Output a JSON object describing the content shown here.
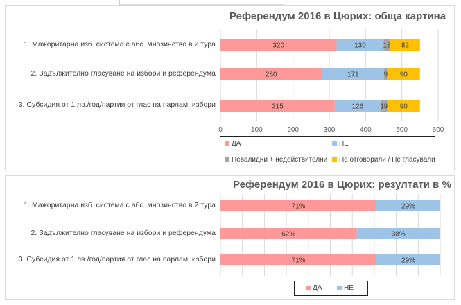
{
  "colors": {
    "yes": "#ff9999",
    "no": "#9dc3e6",
    "invalid": "#a5a5a5",
    "noanswer": "#ffc000"
  },
  "chart_data": [
    {
      "type": "bar",
      "orientation": "horizontal",
      "stacked": true,
      "title": "Референдум 2016 в Цюрих: обща картина",
      "categories": [
        "1. Мажоритарна изб. система с абс. мнозинство в 2 тура",
        "2. Задължително гласуване на избори и референдума",
        "3. Субсидия от 1 лв./год/партия от глас на парлам. избори"
      ],
      "series": [
        {
          "name": "ДА",
          "values": [
            320,
            280,
            315
          ]
        },
        {
          "name": "НЕ",
          "values": [
            130,
            171,
            126
          ]
        },
        {
          "name": "Невалидни + недействителни",
          "values": [
            18,
            9,
            19
          ]
        },
        {
          "name": "Не отговорили / Не гласували",
          "values": [
            82,
            90,
            90
          ]
        }
      ],
      "xlim": [
        0,
        600
      ],
      "ticks": [
        "0",
        "100",
        "200",
        "300",
        "400",
        "500",
        "600"
      ],
      "grid": true,
      "legend": "bottom"
    },
    {
      "type": "bar",
      "orientation": "horizontal",
      "stacked": true,
      "percent": true,
      "title": "Референдум 2016 в Цюрих: резултати в %",
      "categories": [
        "1. Мажоритарна изб. система с абс. мнозинство в 2 тура",
        "2. Задължително гласуване на избори и референдума",
        "3. Субсидия от 1 лв./год/партия от глас на парлам. избори"
      ],
      "series": [
        {
          "name": "ДА",
          "values": [
            71,
            62,
            71
          ],
          "labels": [
            "71%",
            "62%",
            "71%"
          ]
        },
        {
          "name": "НЕ",
          "values": [
            29,
            38,
            29
          ],
          "labels": [
            "29%",
            "38%",
            "29%"
          ]
        }
      ],
      "xlim": [
        0,
        100
      ],
      "grid": true,
      "legend": "bottom"
    }
  ]
}
